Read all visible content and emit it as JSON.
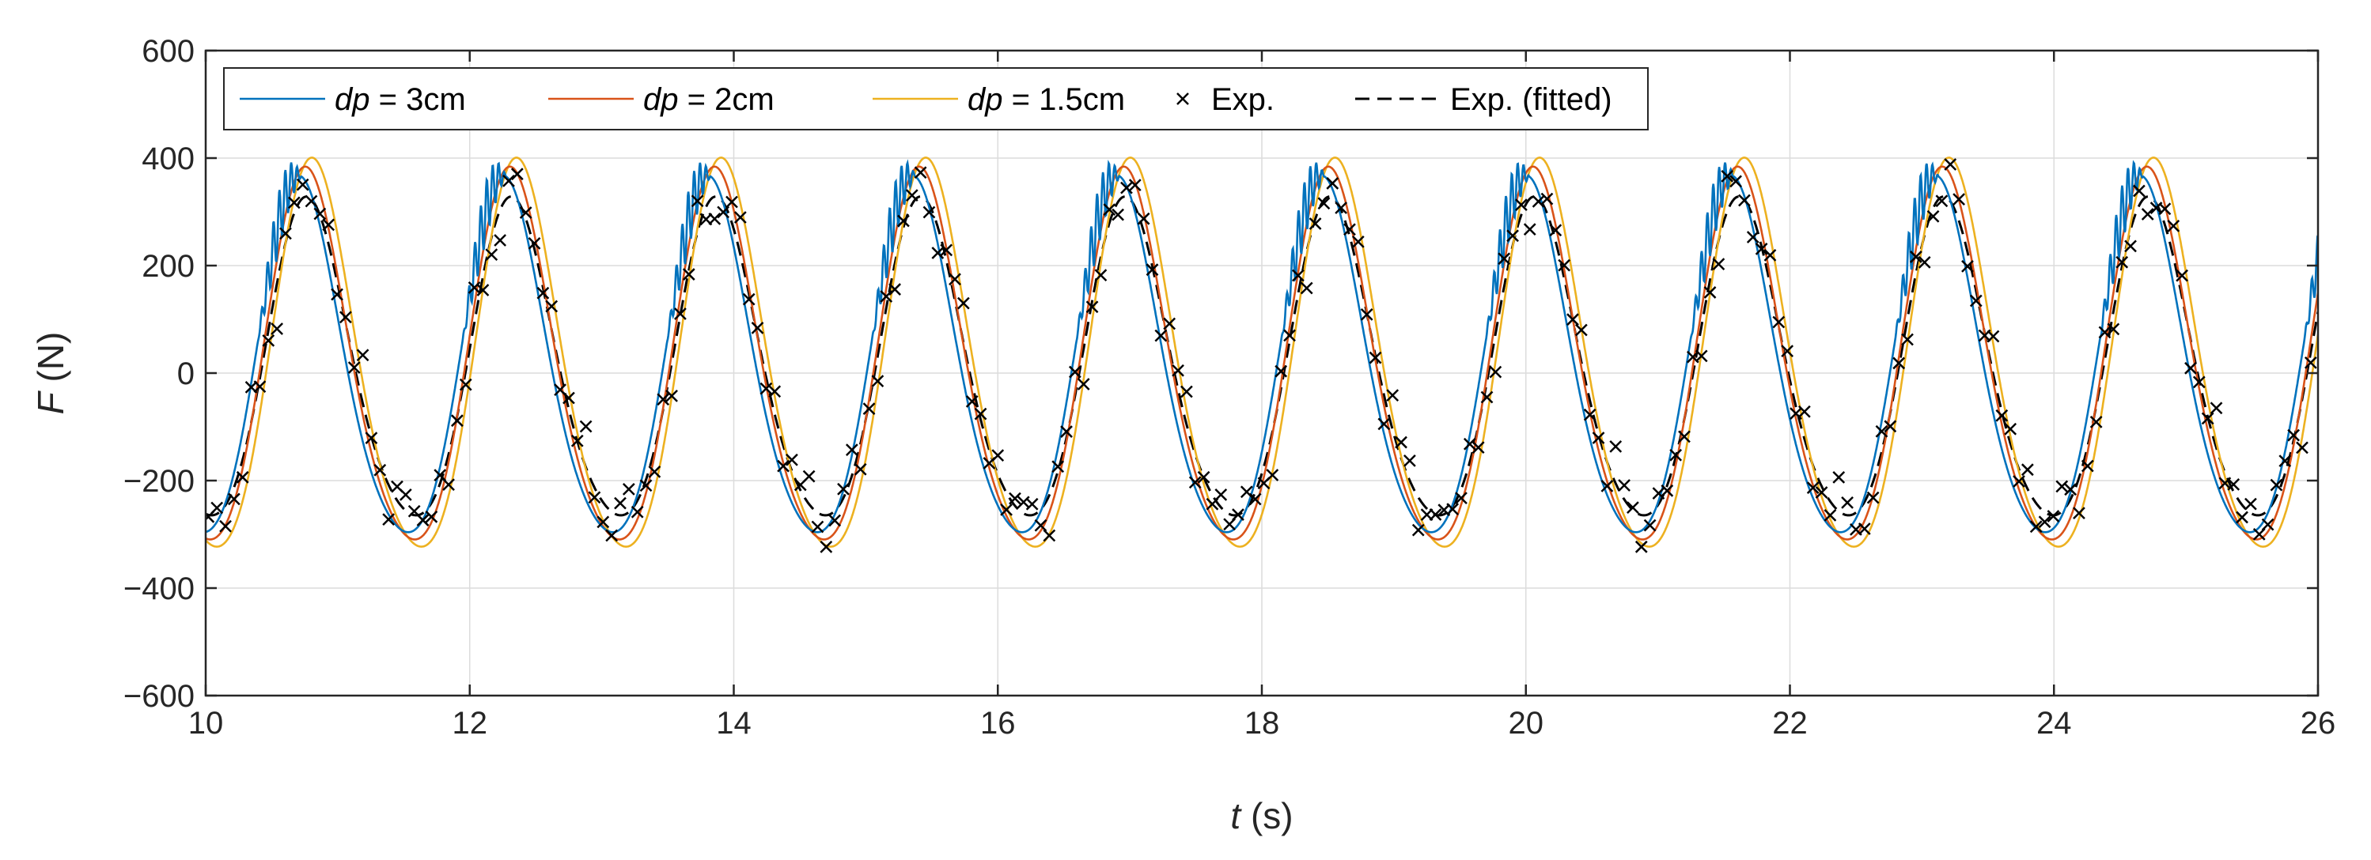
{
  "chart_data": {
    "type": "line",
    "title": "",
    "xlabel": {
      "symbol": "t",
      "unit": " (s)"
    },
    "ylabel": {
      "symbol": "F",
      "unit": " (N)"
    },
    "xlim": [
      10,
      26
    ],
    "ylim": [
      -600,
      600
    ],
    "xticks": [
      10,
      12,
      14,
      16,
      18,
      20,
      22,
      24,
      26
    ],
    "yticks": [
      -600,
      -400,
      -200,
      0,
      200,
      400,
      600
    ],
    "ytick_labels": [
      "−600",
      "−400",
      "−200",
      "0",
      "200",
      "400",
      "600"
    ],
    "grid": true,
    "legend_position": "top-left",
    "period": 1.55,
    "series": [
      {
        "name": "dp = 3cm",
        "legend_symbol": "dp",
        "legend_suffix": " = 3cm",
        "style": "line",
        "color": "#0072BD",
        "amplitude": 330,
        "phase_lag": 0.0,
        "noisy_rise": true,
        "description": "blue simulated force curve"
      },
      {
        "name": "dp = 2cm",
        "legend_symbol": "dp",
        "legend_suffix": " = 2cm",
        "style": "line",
        "color": "#D95319",
        "amplitude": 345,
        "phase_lag": 0.05,
        "noisy_rise": false,
        "description": "red simulated force curve"
      },
      {
        "name": "dp = 1.5cm",
        "legend_symbol": "dp",
        "legend_suffix": " = 1.5cm",
        "style": "line",
        "color": "#EDB120",
        "amplitude": 360,
        "phase_lag": 0.1,
        "noisy_rise": false,
        "description": "yellow simulated force curve"
      },
      {
        "name": "Exp.",
        "legend_symbol": "",
        "legend_suffix": "Exp.",
        "style": "marker",
        "color": "#000000",
        "amplitude": 300,
        "phase_lag": 0.07,
        "description": "experimental measurements (x markers)"
      },
      {
        "name": "Exp. (fitted)",
        "legend_symbol": "",
        "legend_suffix": "Exp. (fitted)",
        "style": "dashed",
        "color": "#000000",
        "amplitude": 295,
        "phase_lag": 0.06,
        "description": "fitted experimental curve"
      }
    ]
  }
}
